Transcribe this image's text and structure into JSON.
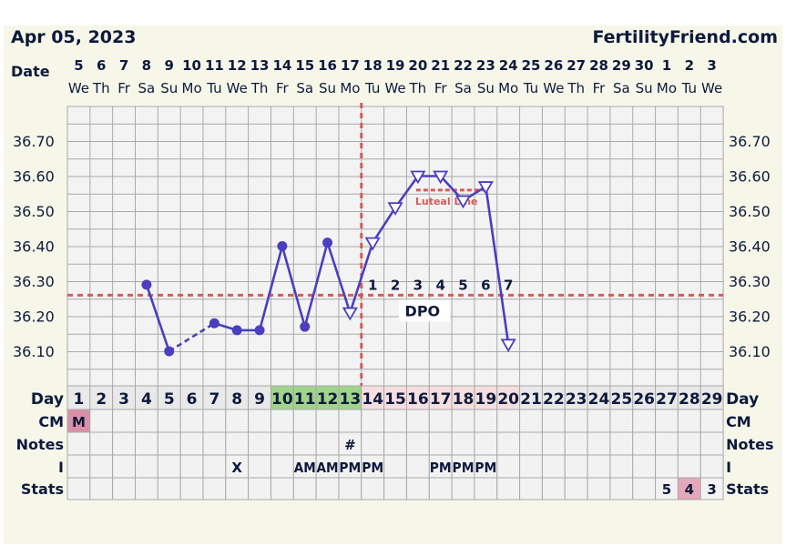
{
  "header": {
    "date": "Apr 05, 2023",
    "site": "FertilityFriend.com",
    "date_label": "Date"
  },
  "dates": [
    "5",
    "6",
    "7",
    "8",
    "9",
    "10",
    "11",
    "12",
    "13",
    "14",
    "15",
    "16",
    "17",
    "18",
    "19",
    "20",
    "21",
    "22",
    "23",
    "24",
    "25",
    "26",
    "27",
    "28",
    "29",
    "30",
    "1",
    "2",
    "3"
  ],
  "weekdays": [
    "We",
    "Th",
    "Fr",
    "Sa",
    "Su",
    "Mo",
    "Tu",
    "We",
    "Th",
    "Fr",
    "Sa",
    "Su",
    "Mo",
    "Tu",
    "We",
    "Th",
    "Fr",
    "Sa",
    "Su",
    "Mo",
    "Tu",
    "We",
    "Th",
    "Fr",
    "Sa",
    "Su",
    "Mo",
    "Tu",
    "We"
  ],
  "row_labels": {
    "day": "Day",
    "cm": "CM",
    "notes": "Notes",
    "i": "I",
    "stats": "Stats"
  },
  "days": [
    "1",
    "2",
    "3",
    "4",
    "5",
    "6",
    "7",
    "8",
    "9",
    "10",
    "11",
    "12",
    "13",
    "14",
    "15",
    "16",
    "17",
    "18",
    "19",
    "20",
    "21",
    "22",
    "23",
    "24",
    "25",
    "26",
    "27",
    "28",
    "29"
  ],
  "colors": {
    "line": "#4a3fc0",
    "coverline": "#d65a5a",
    "grid": "#a9a9a9",
    "fertile_green": "#9fd48a",
    "luteal_pink": "#f6dede",
    "cm_m": "#d98fa6",
    "stats_pink": "#e4a7bb"
  },
  "cm_row": {
    "1": "M"
  },
  "notes_row": {
    "13": "#"
  },
  "i_row": {
    "8": "X",
    "11": "AM",
    "12": "AM",
    "13": "PM",
    "14": "PM",
    "17": "PM",
    "18": "PM",
    "19": "PM"
  },
  "stats_row": {
    "27": "5",
    "28": "4",
    "29": "3"
  },
  "dpo": {
    "labels": [
      "1",
      "2",
      "3",
      "4",
      "5",
      "6",
      "7"
    ],
    "label_days": [
      14,
      15,
      16,
      17,
      18,
      19,
      20
    ],
    "text": "DPO"
  },
  "luteal_label": "Luteal Line",
  "chart_data": {
    "type": "line",
    "title": "",
    "xlabel": "Day",
    "ylabel": "",
    "ylim": [
      36.0,
      36.8
    ],
    "y_ticks": [
      "36.10",
      "36.20",
      "36.30",
      "36.40",
      "36.50",
      "36.60",
      "36.70"
    ],
    "grid": true,
    "series": [
      {
        "x": [
          4,
          5,
          7,
          8,
          9,
          10,
          11,
          12,
          13,
          14,
          15,
          16,
          17,
          18,
          19,
          20
        ],
        "y": [
          36.29,
          36.1,
          36.18,
          36.16,
          36.16,
          36.4,
          36.17,
          36.41,
          36.21,
          36.41,
          36.51,
          36.6,
          36.6,
          36.53,
          36.57,
          36.12
        ]
      }
    ],
    "coverline": 36.26,
    "ovulation_day": 13,
    "luteal_line": 36.56
  }
}
